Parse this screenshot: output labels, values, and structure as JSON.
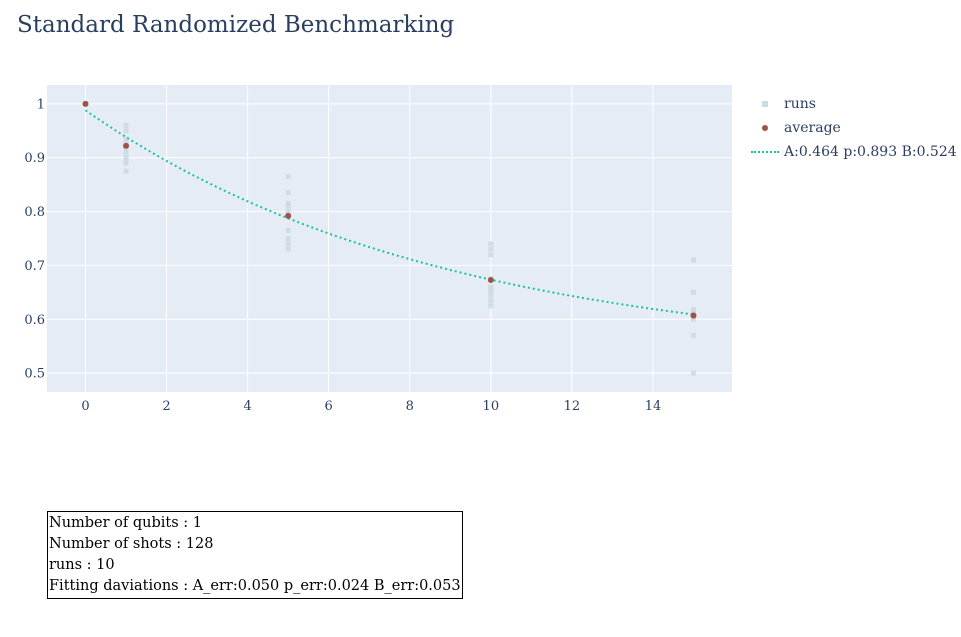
{
  "chart_data": {
    "type": "scatter",
    "title": "Standard Randomized Benchmarking",
    "xlabel": "",
    "ylabel": "",
    "xlim": [
      -0.95,
      15.95
    ],
    "ylim": [
      0.465,
      1.035
    ],
    "x_ticks": [
      0,
      2,
      4,
      6,
      8,
      10,
      12,
      14
    ],
    "y_ticks": [
      0.5,
      0.6,
      0.7,
      0.8,
      0.9,
      1
    ],
    "grid": true,
    "legend_position": "right",
    "series": [
      {
        "name": "runs",
        "mode": "markers",
        "color": "#cdd9e0",
        "x": [
          0,
          0,
          0,
          0,
          0,
          0,
          0,
          0,
          0,
          0,
          1,
          1,
          1,
          1,
          1,
          1,
          1,
          1,
          1,
          1,
          5,
          5,
          5,
          5,
          5,
          5,
          5,
          5,
          5,
          5,
          10,
          10,
          10,
          10,
          10,
          10,
          10,
          10,
          10,
          10,
          15,
          15,
          15,
          15,
          15,
          15,
          15,
          15,
          15,
          15
        ],
        "y": [
          1,
          1,
          1,
          1,
          1,
          1,
          1,
          1,
          1,
          1,
          0.96,
          0.95,
          0.93,
          0.92,
          0.91,
          0.9,
          0.895,
          0.89,
          0.875,
          0.935,
          0.865,
          0.835,
          0.81,
          0.8,
          0.795,
          0.765,
          0.75,
          0.74,
          0.73,
          0.815,
          0.74,
          0.73,
          0.72,
          0.675,
          0.66,
          0.65,
          0.645,
          0.635,
          0.625,
          0.655,
          0.71,
          0.65,
          0.615,
          0.61,
          0.6,
          0.57,
          0.5,
          0.605,
          0.612,
          0.618
        ]
      },
      {
        "name": "average",
        "mode": "markers",
        "color": "#a0524a",
        "x": [
          0,
          1,
          5,
          10,
          15
        ],
        "y": [
          1.0,
          0.922,
          0.792,
          0.673,
          0.607
        ]
      },
      {
        "name": "A:0.464 p:0.893 B:0.524",
        "mode": "lines",
        "dash": "dot",
        "color": "#17c49a",
        "fit": {
          "A": 0.464,
          "p": 0.893,
          "B": 0.524
        },
        "x_range": [
          0,
          15
        ]
      }
    ]
  },
  "info": {
    "lines": [
      "Number of qubits : 1",
      "Number of shots : 128",
      "runs : 10",
      "Fitting daviations : A_err:0.050 p_err:0.024 B_err:0.053"
    ]
  },
  "colors": {
    "plot_bg": "#e5ecf6",
    "grid": "#ffffff",
    "axis_text": "#2a3f5f"
  }
}
